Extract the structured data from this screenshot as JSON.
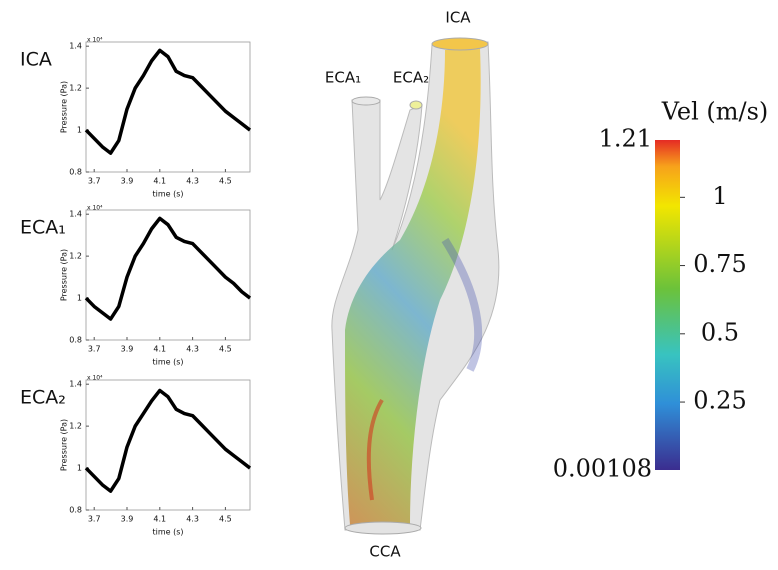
{
  "chart_data": [
    {
      "type": "line",
      "title": "ICA",
      "ylabel": "Pressure (Pa)",
      "xlabel": "time (s)",
      "multiplier": "x 10⁴",
      "x": [
        3.65,
        3.7,
        3.75,
        3.8,
        3.85,
        3.9,
        3.95,
        4.0,
        4.05,
        4.1,
        4.15,
        4.2,
        4.25,
        4.3,
        4.35,
        4.4,
        4.45,
        4.5,
        4.55,
        4.6,
        4.65
      ],
      "series": [
        {
          "name": "ICA",
          "color": "#000000",
          "values": [
            1.0,
            0.96,
            0.92,
            0.89,
            0.95,
            1.1,
            1.2,
            1.26,
            1.33,
            1.38,
            1.35,
            1.28,
            1.26,
            1.25,
            1.21,
            1.17,
            1.13,
            1.09,
            1.06,
            1.03,
            1.0
          ]
        }
      ],
      "xlim": [
        3.65,
        4.65
      ],
      "xticks": [
        3.7,
        3.9,
        4.1,
        4.3,
        4.5
      ],
      "ylim": [
        0.8,
        1.42
      ],
      "yticks": [
        0.8,
        1,
        1.2,
        1.4
      ]
    },
    {
      "type": "line",
      "title": "ECA₁",
      "ylabel": "Pressure (Pa)",
      "xlabel": "time (s)",
      "multiplier": "x 10⁴",
      "x": [
        3.65,
        3.7,
        3.75,
        3.8,
        3.85,
        3.9,
        3.95,
        4.0,
        4.05,
        4.1,
        4.15,
        4.2,
        4.25,
        4.3,
        4.35,
        4.4,
        4.45,
        4.5,
        4.55,
        4.6,
        4.65
      ],
      "series": [
        {
          "name": "ECA₁",
          "color": "#000000",
          "values": [
            1.0,
            0.96,
            0.93,
            0.9,
            0.96,
            1.1,
            1.2,
            1.26,
            1.33,
            1.38,
            1.35,
            1.29,
            1.27,
            1.26,
            1.22,
            1.18,
            1.14,
            1.1,
            1.07,
            1.03,
            1.0
          ]
        }
      ],
      "xlim": [
        3.65,
        4.65
      ],
      "xticks": [
        3.7,
        3.9,
        4.1,
        4.3,
        4.5
      ],
      "ylim": [
        0.8,
        1.42
      ],
      "yticks": [
        0.8,
        1,
        1.2,
        1.4
      ]
    },
    {
      "type": "line",
      "title": "ECA₂",
      "ylabel": "Pressure (Pa)",
      "xlabel": "time (s)",
      "multiplier": "x 10⁴",
      "x": [
        3.65,
        3.7,
        3.75,
        3.8,
        3.85,
        3.9,
        3.95,
        4.0,
        4.05,
        4.1,
        4.15,
        4.2,
        4.25,
        4.3,
        4.35,
        4.4,
        4.45,
        4.5,
        4.55,
        4.6,
        4.65
      ],
      "series": [
        {
          "name": "ECA₂",
          "color": "#000000",
          "values": [
            1.0,
            0.96,
            0.92,
            0.89,
            0.95,
            1.1,
            1.2,
            1.26,
            1.32,
            1.37,
            1.34,
            1.28,
            1.26,
            1.25,
            1.21,
            1.17,
            1.13,
            1.09,
            1.06,
            1.03,
            1.0
          ]
        }
      ],
      "xlim": [
        3.65,
        4.65
      ],
      "xticks": [
        3.7,
        3.9,
        4.1,
        4.3,
        4.5
      ],
      "ylim": [
        0.8,
        1.42
      ],
      "yticks": [
        0.8,
        1,
        1.2,
        1.4
      ]
    }
  ],
  "model": {
    "labels": [
      "ICA",
      "ECA₁",
      "ECA₂",
      "CCA"
    ]
  },
  "colorbar": {
    "title": "Vel (m/s)",
    "lim": [
      0.00108,
      1.21
    ],
    "ticks": [
      0.25,
      0.5,
      0.75,
      1
    ]
  }
}
